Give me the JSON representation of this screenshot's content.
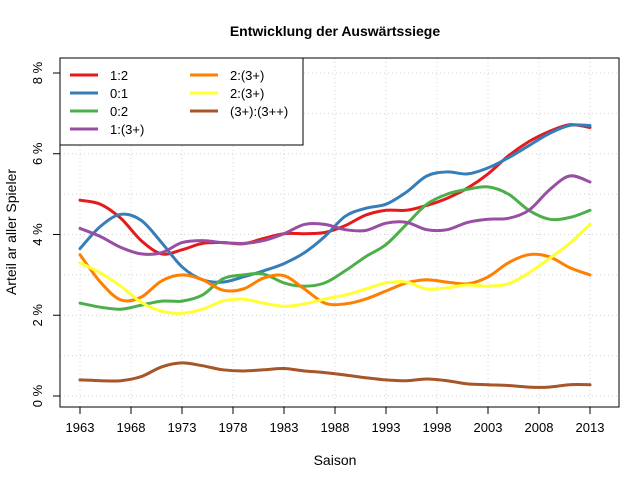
{
  "chart_data": {
    "type": "line",
    "title": "Entwicklung der Auswärtssiege",
    "xlabel": "Saison",
    "ylabel": "Arteil ar aller Spieler",
    "xlim": [
      1963,
      2013
    ],
    "ylim": [
      0,
      8
    ],
    "x_ticks": [
      1963,
      1968,
      1973,
      1978,
      1983,
      1988,
      1993,
      1998,
      2003,
      2008,
      2013
    ],
    "y_ticks": [
      0,
      2,
      4,
      6,
      8
    ],
    "y_tick_labels": [
      "0 %",
      "2 %",
      "4 %",
      "6 %",
      "8 %"
    ],
    "grid": true,
    "legend_position": "top-left",
    "x": [
      1963,
      1965,
      1967,
      1969,
      1971,
      1973,
      1975,
      1977,
      1979,
      1981,
      1983,
      1985,
      1987,
      1989,
      1991,
      1993,
      1995,
      1997,
      1999,
      2001,
      2003,
      2005,
      2007,
      2009,
      2011,
      2013
    ],
    "series": [
      {
        "name": "1:2",
        "color": "#e41a1c",
        "values": [
          4.85,
          4.75,
          4.4,
          3.85,
          3.52,
          3.62,
          3.78,
          3.8,
          3.77,
          3.9,
          4.02,
          4.02,
          4.05,
          4.22,
          4.48,
          4.6,
          4.6,
          4.72,
          4.9,
          5.15,
          5.5,
          5.95,
          6.3,
          6.55,
          6.72,
          6.65
        ]
      },
      {
        "name": "0:1",
        "color": "#377eb8",
        "values": [
          3.65,
          4.2,
          4.5,
          4.35,
          3.8,
          3.2,
          2.88,
          2.82,
          2.95,
          3.1,
          3.28,
          3.55,
          3.95,
          4.45,
          4.65,
          4.75,
          5.05,
          5.45,
          5.55,
          5.5,
          5.65,
          5.9,
          6.2,
          6.5,
          6.7,
          6.7
        ]
      },
      {
        "name": "0:2",
        "color": "#4daf4a",
        "values": [
          2.3,
          2.2,
          2.15,
          2.25,
          2.35,
          2.35,
          2.5,
          2.9,
          3.0,
          3.02,
          2.8,
          2.72,
          2.8,
          3.1,
          3.45,
          3.75,
          4.25,
          4.75,
          5.0,
          5.12,
          5.18,
          5.0,
          4.6,
          4.38,
          4.42,
          4.6
        ]
      },
      {
        "name": "1:(3+)",
        "color": "#984ea3",
        "values": [
          4.15,
          3.95,
          3.68,
          3.52,
          3.55,
          3.8,
          3.85,
          3.8,
          3.78,
          3.85,
          4.02,
          4.25,
          4.25,
          4.12,
          4.1,
          4.28,
          4.3,
          4.12,
          4.12,
          4.3,
          4.38,
          4.4,
          4.6,
          5.1,
          5.45,
          5.3
        ]
      },
      {
        "name": "2:(3+)",
        "color": "#ff7f00",
        "values": [
          3.5,
          2.82,
          2.38,
          2.45,
          2.85,
          3.0,
          2.88,
          2.62,
          2.65,
          2.92,
          2.98,
          2.65,
          2.3,
          2.28,
          2.4,
          2.6,
          2.8,
          2.88,
          2.82,
          2.78,
          2.95,
          3.3,
          3.5,
          3.45,
          3.18,
          3.0
        ]
      },
      {
        "name": "2:(3+)",
        "color": "#ffff33",
        "values": [
          3.3,
          3.05,
          2.72,
          2.32,
          2.1,
          2.05,
          2.15,
          2.35,
          2.4,
          2.3,
          2.22,
          2.28,
          2.4,
          2.5,
          2.65,
          2.8,
          2.82,
          2.65,
          2.68,
          2.75,
          2.72,
          2.78,
          3.05,
          3.4,
          3.78,
          4.25
        ]
      },
      {
        "name": "(3+):(3++)",
        "color": "#a65628",
        "values": [
          0.4,
          0.38,
          0.38,
          0.48,
          0.72,
          0.82,
          0.75,
          0.65,
          0.62,
          0.65,
          0.68,
          0.62,
          0.58,
          0.52,
          0.45,
          0.4,
          0.38,
          0.42,
          0.38,
          0.3,
          0.28,
          0.26,
          0.22,
          0.22,
          0.28,
          0.28
        ]
      }
    ]
  }
}
